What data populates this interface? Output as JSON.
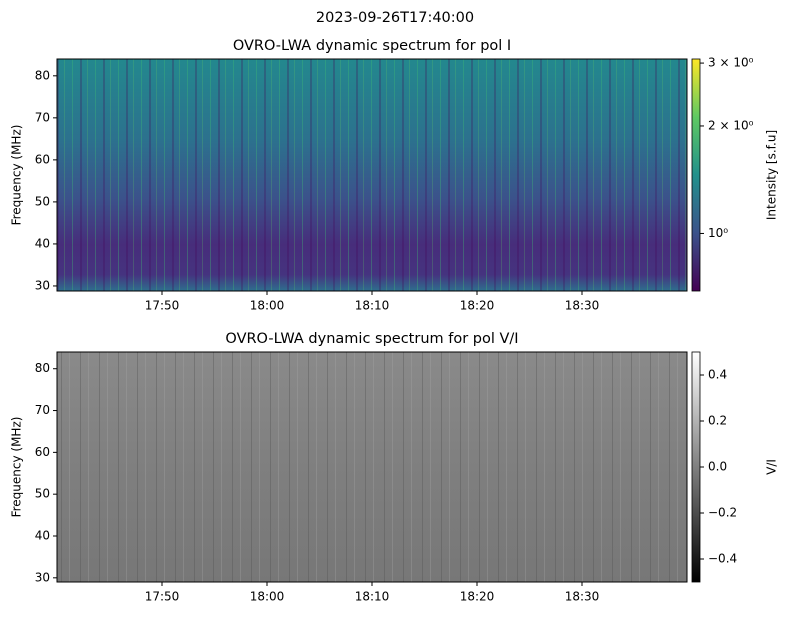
{
  "figure_title": "2023-09-26T17:40:00",
  "chart_data": [
    {
      "type": "heatmap",
      "title": "OVRO-LWA dynamic spectrum for pol I",
      "ylabel": "Frequency (MHz)",
      "colorbar_label": "Intensity [s.f.u]",
      "colormap": "viridis",
      "cscale": "log",
      "clim": [
        0.69,
        3.08
      ],
      "cticks": [
        {
          "value": 1,
          "label": "10⁰"
        },
        {
          "value": 2,
          "label": "2 × 10⁰"
        },
        {
          "value": 3,
          "label": "3 × 10⁰"
        }
      ],
      "xlim": [
        "17:40",
        "18:40"
      ],
      "xticks": [
        "17:50",
        "18:00",
        "18:10",
        "18:20",
        "18:30"
      ],
      "ylim": [
        28.8,
        84
      ],
      "yticks": [
        30,
        40,
        50,
        60,
        70,
        80
      ]
    },
    {
      "type": "heatmap",
      "title": "OVRO-LWA dynamic spectrum for pol V/I",
      "ylabel": "Frequency (MHz)",
      "colorbar_label": "V/I",
      "colormap": "gray",
      "cscale": "linear",
      "clim": [
        -0.5,
        0.5
      ],
      "cticks": [
        0.4,
        0.2,
        {
          "value": 0,
          "label": "0.0"
        },
        {
          "value": -0.2,
          "label": "−0.2"
        },
        {
          "value": -0.4,
          "label": "−0.4"
        }
      ],
      "xlim": [
        "17:40",
        "18:40"
      ],
      "xticks": [
        "17:50",
        "18:00",
        "18:10",
        "18:20",
        "18:30"
      ],
      "ylim": [
        29,
        84
      ],
      "yticks": [
        30,
        40,
        50,
        60,
        70,
        80
      ]
    }
  ]
}
